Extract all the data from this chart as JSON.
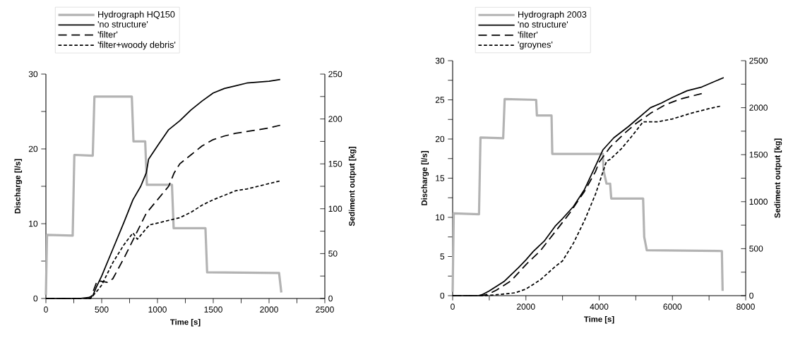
{
  "chart_data": [
    {
      "type": "line",
      "xlabel": "Time [s]",
      "ylabel": "Discharge [l/s]",
      "y2label": "Sediment output [kg]",
      "legend": "top left",
      "xlim": [
        0,
        2500
      ],
      "xticks": [
        0,
        {
          "value": 250,
          "label": null
        },
        500,
        {
          "value": 750,
          "label": null
        },
        1000,
        {
          "value": 1250,
          "label": null
        },
        1500,
        {
          "value": 1750,
          "label": null
        },
        2000,
        {
          "value": 2250,
          "label": null
        },
        2500
      ],
      "ylim": [
        0,
        30
      ],
      "yticks": [
        0,
        {
          "value": 5,
          "label": null
        },
        10,
        {
          "value": 15,
          "label": null
        },
        20,
        {
          "value": 25,
          "label": null
        },
        30
      ],
      "y2lim": [
        0,
        250
      ],
      "y2ticks": [
        0,
        {
          "value": 25,
          "label": null
        },
        50,
        {
          "value": 75,
          "label": null
        },
        100,
        {
          "value": 125,
          "label": null
        },
        150,
        {
          "value": 175,
          "label": null
        },
        200,
        {
          "value": 225,
          "label": null
        },
        250
      ],
      "series": [
        {
          "name": "Hydrograph HQ150",
          "color": "#b3b3b3",
          "line_style": "solid",
          "axis": "y",
          "x": [
            0,
            10,
            240,
            255,
            420,
            435,
            770,
            785,
            890,
            905,
            1130,
            1145,
            1430,
            1445,
            2090,
            2110
          ],
          "values": [
            0.5,
            8.5,
            8.4,
            19.2,
            19.1,
            27,
            27,
            21,
            21,
            15.2,
            15.2,
            9.4,
            9.4,
            3.5,
            3.4,
            0.8
          ]
        },
        {
          "name": "'no structure'",
          "color": "#000000",
          "line_style": "solid",
          "axis": "y2",
          "x": [
            0,
            300,
            380,
            420,
            450,
            500,
            600,
            700,
            780,
            850,
            900,
            920,
            1000,
            1100,
            1200,
            1300,
            1400,
            1500,
            1600,
            1700,
            1800,
            1900,
            2000,
            2100
          ],
          "values": [
            0,
            0,
            1,
            3,
            12,
            25,
            55,
            85,
            110,
            125,
            140,
            155,
            170,
            188,
            198,
            210,
            220,
            229,
            234,
            237,
            240,
            241,
            242,
            244
          ]
        },
        {
          "name": "'filter'",
          "color": "#000000",
          "line_style": "dashed",
          "axis": "y2",
          "x": [
            0,
            400,
            460,
            550,
            600,
            700,
            800,
            900,
            1000,
            1100,
            1150,
            1200,
            1300,
            1400,
            1500,
            1600,
            1700,
            1800,
            1900,
            2000,
            2100
          ],
          "values": [
            0,
            0,
            20,
            18,
            22,
            45,
            70,
            95,
            110,
            125,
            140,
            150,
            160,
            170,
            177,
            181,
            184,
            186,
            188,
            190,
            193
          ]
        },
        {
          "name": "'filter+woody debris'",
          "color": "#000000",
          "line_style": "dotted",
          "axis": "y2",
          "x": [
            0,
            400,
            470,
            500,
            600,
            700,
            780,
            820,
            900,
            930,
            1000,
            1200,
            1300,
            1400,
            1500,
            1600,
            1700,
            1800,
            1900,
            2000,
            2100
          ],
          "values": [
            0,
            0,
            10,
            15,
            40,
            60,
            73,
            66,
            78,
            82,
            84,
            90,
            96,
            104,
            110,
            115,
            120,
            122,
            125,
            128,
            131
          ]
        }
      ]
    },
    {
      "type": "line",
      "xlabel": "Time [s]",
      "ylabel": "Discharge [l/s]",
      "y2label": "Sediment output [kg]",
      "legend": "top left",
      "xlim": [
        0,
        8000
      ],
      "xticks": [
        0,
        {
          "value": 1000,
          "label": null
        },
        2000,
        {
          "value": 3000,
          "label": null
        },
        4000,
        {
          "value": 5000,
          "label": null
        },
        6000,
        {
          "value": 7000,
          "label": null
        },
        8000
      ],
      "ylim": [
        0,
        30
      ],
      "yticks": [
        0,
        {
          "value": 2.5,
          "label": null
        },
        5,
        {
          "value": 7.5,
          "label": null
        },
        10,
        {
          "value": 12.5,
          "label": null
        },
        15,
        {
          "value": 17.5,
          "label": null
        },
        20,
        {
          "value": 22.5,
          "label": null
        },
        25,
        {
          "value": 27.5,
          "label": null
        },
        30
      ],
      "y2lim": [
        0,
        2500
      ],
      "y2ticks": [
        0,
        {
          "value": 250,
          "label": null
        },
        500,
        {
          "value": 750,
          "label": null
        },
        1000,
        {
          "value": 1250,
          "label": null
        },
        1500,
        {
          "value": 1750,
          "label": null
        },
        2000,
        {
          "value": 2250,
          "label": null
        },
        2500
      ],
      "series": [
        {
          "name": "Hydrograph 2003",
          "color": "#b3b3b3",
          "line_style": "solid",
          "axis": "y",
          "x": [
            0,
            30,
            720,
            760,
            1380,
            1420,
            2280,
            2300,
            2700,
            2720,
            4100,
            4120,
            4200,
            4300,
            4330,
            5200,
            5230,
            5300,
            7350,
            7370
          ],
          "values": [
            0.5,
            10.5,
            10.4,
            20.2,
            20.1,
            25.1,
            25,
            23,
            23,
            18.1,
            18.1,
            16,
            14.3,
            14.3,
            12.4,
            12.4,
            7.5,
            5.8,
            5.7,
            0.6
          ]
        },
        {
          "name": "'no structure'",
          "color": "#000000",
          "line_style": "solid",
          "axis": "y2",
          "x": [
            0,
            700,
            800,
            1000,
            1400,
            1800,
            2000,
            2200,
            2500,
            2800,
            3000,
            3300,
            3600,
            3900,
            4100,
            4400,
            4800,
            5100,
            5400,
            5700,
            6000,
            6400,
            6800,
            7100,
            7400
          ],
          "values": [
            0,
            0,
            10,
            50,
            150,
            300,
            380,
            470,
            580,
            740,
            820,
            950,
            1130,
            1380,
            1550,
            1680,
            1800,
            1900,
            2000,
            2050,
            2110,
            2180,
            2220,
            2270,
            2320
          ]
        },
        {
          "name": "'filter'",
          "color": "#000000",
          "line_style": "dashed",
          "axis": "y2",
          "x": [
            0,
            800,
            1000,
            1200,
            1600,
            2000,
            2400,
            2800,
            3200,
            3600,
            3900,
            4000,
            4300,
            4700,
            5000,
            5400,
            5800,
            6200,
            6800
          ],
          "values": [
            0,
            0,
            20,
            60,
            160,
            330,
            480,
            680,
            880,
            1110,
            1320,
            1420,
            1580,
            1730,
            1830,
            1940,
            2030,
            2090,
            2150
          ]
        },
        {
          "name": "'groynes'",
          "color": "#000000",
          "line_style": "dotted",
          "axis": "y2",
          "x": [
            0,
            900,
            1200,
            1700,
            2000,
            2400,
            2800,
            3000,
            3300,
            3600,
            3900,
            4200,
            4300,
            4600,
            4900,
            5200,
            5600,
            6000,
            6500,
            7000,
            7350
          ],
          "values": [
            0,
            0,
            10,
            30,
            70,
            170,
            310,
            370,
            560,
            800,
            1080,
            1430,
            1450,
            1560,
            1700,
            1850,
            1850,
            1880,
            1940,
            1990,
            2020
          ]
        }
      ]
    }
  ]
}
